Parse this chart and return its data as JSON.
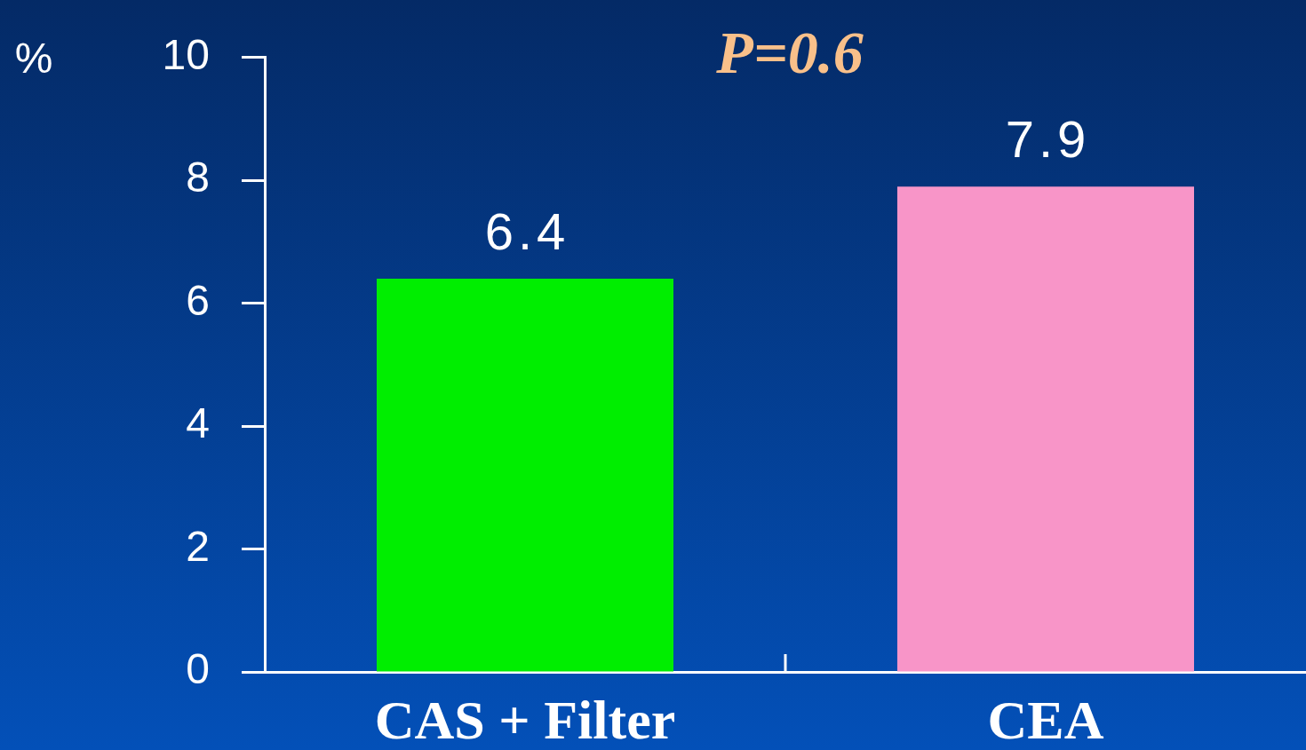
{
  "chart_data": {
    "type": "bar",
    "categories": [
      "CAS + Filter",
      "CEA"
    ],
    "values": [
      6.4,
      7.9
    ],
    "colors": [
      "#00ee00",
      "#f895c8"
    ],
    "ylabel": "%",
    "ylim": [
      0,
      10
    ],
    "yticks": [
      0,
      2,
      4,
      6,
      8,
      10
    ],
    "annotations": [
      "P=0.6"
    ],
    "data_labels": true,
    "grid": false,
    "legend": false
  }
}
